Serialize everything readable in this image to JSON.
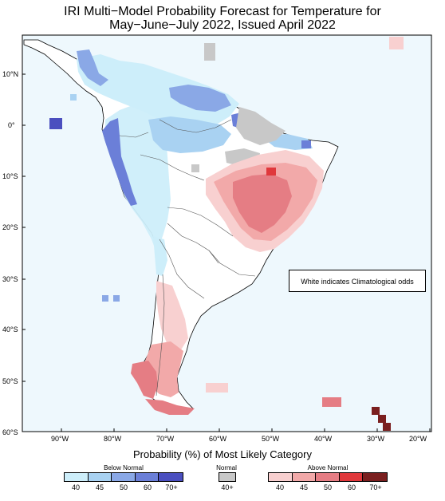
{
  "title_line1": "IRI Multi−Model Probability Forecast for Temperature for",
  "title_line2": "May−June−July 2022, Issued April 2022",
  "note": "White indicates Climatological odds",
  "lat_labels": [
    "10°N",
    "0°",
    "10°S",
    "20°S",
    "30°S",
    "40°S",
    "50°S",
    "60°S"
  ],
  "lon_labels": [
    "90°W",
    "80°W",
    "70°W",
    "60°W",
    "50°W",
    "40°W",
    "30°W",
    "20°W"
  ],
  "legend": {
    "title": "Probability (%) of Most Likely Category",
    "below": {
      "label": "Below Normal",
      "ticks": [
        "40",
        "45",
        "50",
        "60",
        "70+"
      ],
      "colors": [
        "#cdeefa",
        "#a9d2f2",
        "#8aa8e6",
        "#6b7fd8",
        "#4b4fbf"
      ]
    },
    "normal": {
      "label": "Normal",
      "ticks": [
        "40+"
      ],
      "colors": [
        "#c8c8c8"
      ]
    },
    "above": {
      "label": "Above Normal",
      "ticks": [
        "40",
        "45",
        "50",
        "60",
        "70+"
      ],
      "colors": [
        "#f8d0d0",
        "#f2a9a9",
        "#e57d84",
        "#e0383c",
        "#7a1f1f"
      ]
    }
  },
  "colors": {
    "ocean": "#eef8fd",
    "coast": "#000000",
    "border": "#555555"
  }
}
